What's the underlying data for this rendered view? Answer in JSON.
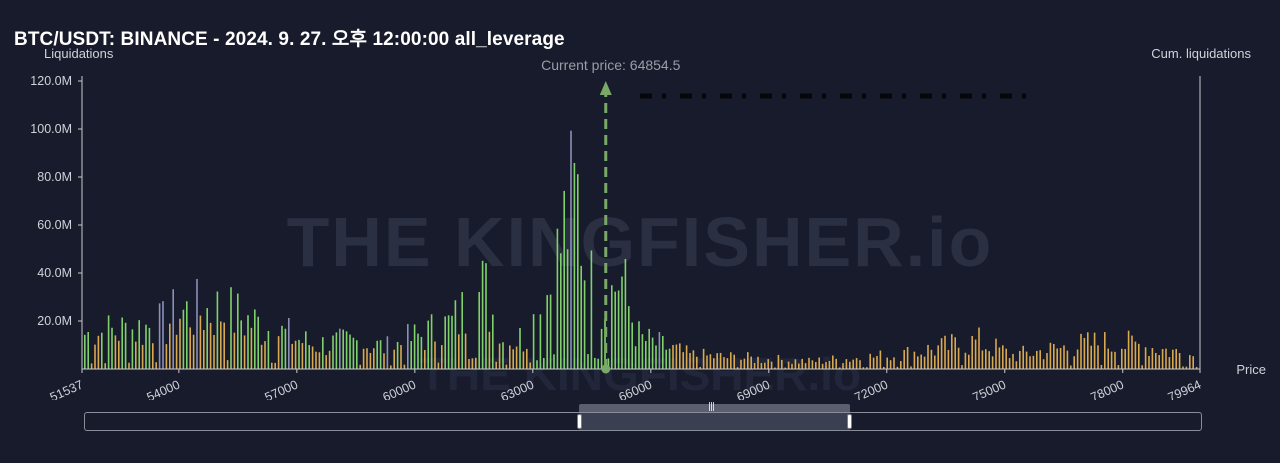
{
  "title": "BTC/USDT: BINANCE - 2024. 9. 27. 오후 12:00:00 all_leverage",
  "watermark": "THE KINGFISHER.io",
  "chart_data": {
    "type": "bar",
    "ylabel": "Liquidations",
    "y2label": "Cum. liquidations",
    "xlabel": "Price",
    "xlim": [
      51537,
      79964
    ],
    "ylim": [
      0,
      120
    ],
    "yunit": "M",
    "yticks": [
      "20.0M",
      "40.0M",
      "60.0M",
      "80.0M",
      "100.0M",
      "120.0M"
    ],
    "ytick_values": [
      20,
      40,
      60,
      80,
      100,
      120
    ],
    "xticks": [
      "51537",
      "54000",
      "57000",
      "60000",
      "63000",
      "66000",
      "69000",
      "72000",
      "75000",
      "78000",
      "79964"
    ],
    "xtick_values": [
      51537,
      54000,
      57000,
      60000,
      63000,
      66000,
      69000,
      72000,
      75000,
      78000,
      79964
    ],
    "current_price_label": "Current price: 64854.5",
    "current_price": 64854.5,
    "colors": {
      "long_liq": "#7fd26a",
      "short_liq": "#d8a94e",
      "minor": "#8c90b8",
      "current_price_line": "#7aa866",
      "axis": "#c8cad2"
    },
    "series_peaks": [
      {
        "price": 51700,
        "value": 23
      },
      {
        "price": 53600,
        "value": 29
      },
      {
        "price": 53950,
        "value": 37
      },
      {
        "price": 55000,
        "value": 39
      },
      {
        "price": 57400,
        "value": 16
      },
      {
        "price": 58500,
        "value": 18
      },
      {
        "price": 59300,
        "value": 14
      },
      {
        "price": 60950,
        "value": 30
      },
      {
        "price": 61750,
        "value": 53
      },
      {
        "price": 62200,
        "value": 18
      },
      {
        "price": 62800,
        "value": 21
      },
      {
        "price": 63500,
        "value": 59
      },
      {
        "price": 63800,
        "value": 95
      },
      {
        "price": 64000,
        "value": 108
      },
      {
        "price": 64150,
        "value": 112
      },
      {
        "price": 64300,
        "value": 70
      },
      {
        "price": 64600,
        "value": 42
      },
      {
        "price": 64900,
        "value": 44
      },
      {
        "price": 65200,
        "value": 64
      },
      {
        "price": 65400,
        "value": 42
      },
      {
        "price": 65700,
        "value": 20
      },
      {
        "price": 67000,
        "value": 9
      },
      {
        "price": 70000,
        "value": 5
      },
      {
        "price": 72200,
        "value": 9
      },
      {
        "price": 74300,
        "value": 18
      },
      {
        "price": 75200,
        "value": 9
      },
      {
        "price": 77300,
        "value": 17
      },
      {
        "price": 78400,
        "value": 16
      },
      {
        "price": 79964,
        "value": 8
      }
    ]
  },
  "scrollbar": {
    "window_start_fraction": 0.441,
    "window_end_fraction": 0.683
  }
}
